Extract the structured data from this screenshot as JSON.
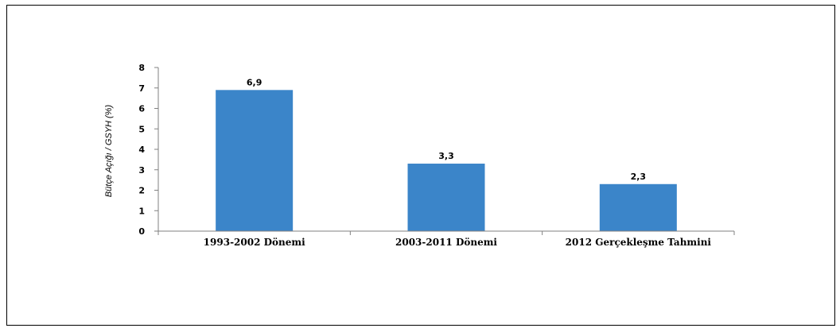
{
  "chart_data": {
    "type": "bar",
    "title": "",
    "xlabel": "",
    "ylabel": "Bütçe Açığı / GSYH (%)",
    "categories": [
      "1993-2002 Dönemi",
      "2003-2011 Dönemi",
      "2012 Gerçekleşme Tahmini"
    ],
    "values": [
      6.9,
      3.3,
      2.3
    ],
    "data_labels": [
      "6,9",
      "3,3",
      "2,3"
    ],
    "y_ticks": [
      "0",
      "1",
      "2",
      "3",
      "4",
      "5",
      "6",
      "7",
      "8"
    ],
    "ylim": [
      0,
      8
    ],
    "grid": false,
    "legend": "none",
    "bar_color": "#3B85C9"
  }
}
